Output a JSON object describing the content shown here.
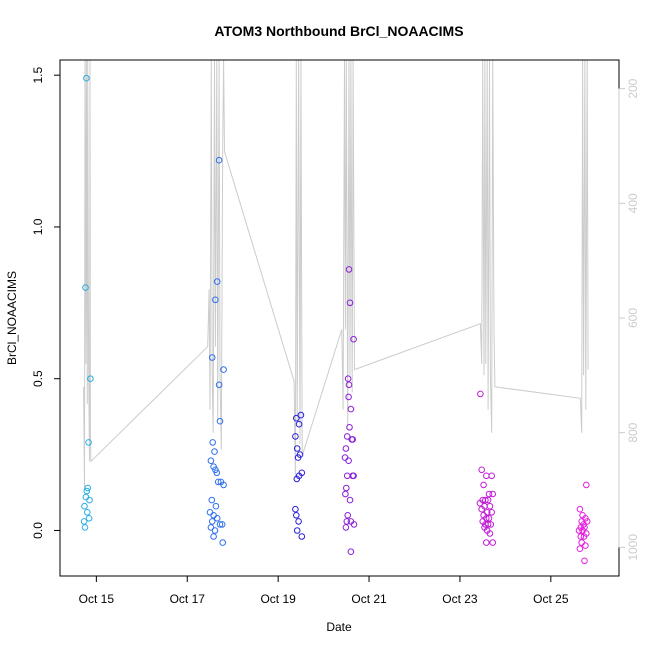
{
  "chart_data": {
    "type": "scatter",
    "title": "ATOM3 Northbound BrCl_NOAACIMS",
    "xlabel": "Date",
    "ylabel": "BrCl_NOAACIMS",
    "xlim": [
      14.2,
      26.5
    ],
    "ylim": [
      -0.15,
      1.55
    ],
    "y_ticks": [
      0.0,
      0.5,
      1.0,
      1.5
    ],
    "y_tick_labels": [
      "0.0",
      "0.5",
      "1.0",
      "1.5"
    ],
    "x_ticks": [
      15,
      17,
      19,
      21,
      23,
      25
    ],
    "x_tick_labels": [
      "Oct 15",
      "Oct 17",
      "Oct 19",
      "Oct 21",
      "Oct 23",
      "Oct 25"
    ],
    "right_axis": {
      "label": "",
      "range": [
        1050,
        150
      ],
      "ticks": [
        200,
        400,
        600,
        800,
        1000
      ],
      "tick_labels": [
        "200",
        "400",
        "600",
        "800",
        "1000"
      ],
      "color": "#cccccc"
    },
    "point_colors": [
      "#29aee3",
      "#2f6fee",
      "#2a1fdc",
      "#8b1ed6",
      "#c21cd8",
      "#e61ee0"
    ],
    "points": [
      {
        "x": 14.78,
        "y": 1.49,
        "g": 0
      },
      {
        "x": 14.76,
        "y": 0.8,
        "g": 0
      },
      {
        "x": 14.87,
        "y": 0.5,
        "g": 0
      },
      {
        "x": 14.83,
        "y": 0.29,
        "g": 0
      },
      {
        "x": 14.81,
        "y": 0.14,
        "g": 0
      },
      {
        "x": 14.79,
        "y": 0.13,
        "g": 0
      },
      {
        "x": 14.77,
        "y": 0.11,
        "g": 0
      },
      {
        "x": 14.85,
        "y": 0.1,
        "g": 0
      },
      {
        "x": 14.74,
        "y": 0.08,
        "g": 0
      },
      {
        "x": 14.8,
        "y": 0.06,
        "g": 0
      },
      {
        "x": 14.84,
        "y": 0.04,
        "g": 0
      },
      {
        "x": 14.73,
        "y": 0.03,
        "g": 0
      },
      {
        "x": 14.75,
        "y": 0.01,
        "g": 0
      },
      {
        "x": 17.7,
        "y": 1.22,
        "g": 1
      },
      {
        "x": 17.66,
        "y": 0.82,
        "g": 1
      },
      {
        "x": 17.62,
        "y": 0.76,
        "g": 1
      },
      {
        "x": 17.55,
        "y": 0.57,
        "g": 1
      },
      {
        "x": 17.8,
        "y": 0.53,
        "g": 1
      },
      {
        "x": 17.7,
        "y": 0.48,
        "g": 1
      },
      {
        "x": 17.72,
        "y": 0.36,
        "g": 1
      },
      {
        "x": 17.56,
        "y": 0.29,
        "g": 1
      },
      {
        "x": 17.6,
        "y": 0.26,
        "g": 1
      },
      {
        "x": 17.52,
        "y": 0.23,
        "g": 1
      },
      {
        "x": 17.58,
        "y": 0.21,
        "g": 1
      },
      {
        "x": 17.62,
        "y": 0.2,
        "g": 1
      },
      {
        "x": 17.65,
        "y": 0.19,
        "g": 1
      },
      {
        "x": 17.68,
        "y": 0.16,
        "g": 1
      },
      {
        "x": 17.74,
        "y": 0.16,
        "g": 1
      },
      {
        "x": 17.8,
        "y": 0.15,
        "g": 1
      },
      {
        "x": 17.54,
        "y": 0.1,
        "g": 1
      },
      {
        "x": 17.63,
        "y": 0.08,
        "g": 1
      },
      {
        "x": 17.5,
        "y": 0.06,
        "g": 1
      },
      {
        "x": 17.58,
        "y": 0.05,
        "g": 1
      },
      {
        "x": 17.66,
        "y": 0.04,
        "g": 1
      },
      {
        "x": 17.55,
        "y": 0.03,
        "g": 1
      },
      {
        "x": 17.72,
        "y": 0.02,
        "g": 1
      },
      {
        "x": 17.77,
        "y": 0.02,
        "g": 1
      },
      {
        "x": 17.52,
        "y": 0.01,
        "g": 1
      },
      {
        "x": 17.61,
        "y": 0.0,
        "g": 1
      },
      {
        "x": 17.58,
        "y": -0.02,
        "g": 1
      },
      {
        "x": 17.78,
        "y": -0.04,
        "g": 1
      },
      {
        "x": 19.5,
        "y": 0.38,
        "g": 2
      },
      {
        "x": 19.4,
        "y": 0.37,
        "g": 2
      },
      {
        "x": 19.46,
        "y": 0.35,
        "g": 2
      },
      {
        "x": 19.38,
        "y": 0.31,
        "g": 2
      },
      {
        "x": 19.42,
        "y": 0.27,
        "g": 2
      },
      {
        "x": 19.48,
        "y": 0.25,
        "g": 2
      },
      {
        "x": 19.44,
        "y": 0.24,
        "g": 2
      },
      {
        "x": 19.52,
        "y": 0.19,
        "g": 2
      },
      {
        "x": 19.46,
        "y": 0.18,
        "g": 2
      },
      {
        "x": 19.41,
        "y": 0.17,
        "g": 2
      },
      {
        "x": 19.38,
        "y": 0.07,
        "g": 2
      },
      {
        "x": 19.4,
        "y": 0.05,
        "g": 2
      },
      {
        "x": 19.45,
        "y": 0.03,
        "g": 2
      },
      {
        "x": 19.42,
        "y": 0.0,
        "g": 2
      },
      {
        "x": 19.52,
        "y": -0.02,
        "g": 2
      },
      {
        "x": 20.56,
        "y": 0.86,
        "g": 3
      },
      {
        "x": 20.58,
        "y": 0.75,
        "g": 3
      },
      {
        "x": 20.66,
        "y": 0.63,
        "g": 3
      },
      {
        "x": 20.54,
        "y": 0.5,
        "g": 3
      },
      {
        "x": 20.56,
        "y": 0.48,
        "g": 3
      },
      {
        "x": 20.55,
        "y": 0.44,
        "g": 3
      },
      {
        "x": 20.6,
        "y": 0.4,
        "g": 3
      },
      {
        "x": 20.57,
        "y": 0.34,
        "g": 3
      },
      {
        "x": 20.52,
        "y": 0.31,
        "g": 3
      },
      {
        "x": 20.62,
        "y": 0.3,
        "g": 3
      },
      {
        "x": 20.64,
        "y": 0.3,
        "g": 3
      },
      {
        "x": 20.49,
        "y": 0.27,
        "g": 3
      },
      {
        "x": 20.47,
        "y": 0.24,
        "g": 3
      },
      {
        "x": 20.55,
        "y": 0.23,
        "g": 3
      },
      {
        "x": 20.52,
        "y": 0.18,
        "g": 3
      },
      {
        "x": 20.64,
        "y": 0.18,
        "g": 3
      },
      {
        "x": 20.66,
        "y": 0.18,
        "g": 3
      },
      {
        "x": 20.5,
        "y": 0.14,
        "g": 3
      },
      {
        "x": 20.48,
        "y": 0.12,
        "g": 3
      },
      {
        "x": 20.58,
        "y": 0.1,
        "g": 3
      },
      {
        "x": 20.53,
        "y": 0.05,
        "g": 3
      },
      {
        "x": 20.51,
        "y": 0.03,
        "g": 3
      },
      {
        "x": 20.6,
        "y": 0.03,
        "g": 3
      },
      {
        "x": 20.67,
        "y": 0.02,
        "g": 3
      },
      {
        "x": 20.49,
        "y": 0.01,
        "g": 3
      },
      {
        "x": 20.6,
        "y": -0.07,
        "g": 3
      },
      {
        "x": 23.45,
        "y": 0.45,
        "g": 4
      },
      {
        "x": 23.48,
        "y": 0.2,
        "g": 4
      },
      {
        "x": 23.58,
        "y": 0.18,
        "g": 4
      },
      {
        "x": 23.7,
        "y": 0.18,
        "g": 4
      },
      {
        "x": 23.52,
        "y": 0.15,
        "g": 4
      },
      {
        "x": 23.64,
        "y": 0.12,
        "g": 4
      },
      {
        "x": 23.72,
        "y": 0.12,
        "g": 4
      },
      {
        "x": 23.5,
        "y": 0.1,
        "g": 4
      },
      {
        "x": 23.56,
        "y": 0.1,
        "g": 4
      },
      {
        "x": 23.62,
        "y": 0.1,
        "g": 4
      },
      {
        "x": 23.44,
        "y": 0.09,
        "g": 4
      },
      {
        "x": 23.54,
        "y": 0.08,
        "g": 4
      },
      {
        "x": 23.66,
        "y": 0.08,
        "g": 4
      },
      {
        "x": 23.48,
        "y": 0.07,
        "g": 4
      },
      {
        "x": 23.6,
        "y": 0.06,
        "g": 4
      },
      {
        "x": 23.7,
        "y": 0.06,
        "g": 4
      },
      {
        "x": 23.52,
        "y": 0.05,
        "g": 4
      },
      {
        "x": 23.58,
        "y": 0.04,
        "g": 4
      },
      {
        "x": 23.64,
        "y": 0.04,
        "g": 4
      },
      {
        "x": 23.5,
        "y": 0.03,
        "g": 4
      },
      {
        "x": 23.56,
        "y": 0.02,
        "g": 4
      },
      {
        "x": 23.62,
        "y": 0.02,
        "g": 4
      },
      {
        "x": 23.68,
        "y": 0.02,
        "g": 4
      },
      {
        "x": 23.54,
        "y": 0.01,
        "g": 4
      },
      {
        "x": 23.6,
        "y": 0.0,
        "g": 4
      },
      {
        "x": 23.66,
        "y": -0.01,
        "g": 4
      },
      {
        "x": 23.58,
        "y": -0.04,
        "g": 4
      },
      {
        "x": 23.72,
        "y": -0.04,
        "g": 4
      },
      {
        "x": 25.78,
        "y": 0.15,
        "g": 5
      },
      {
        "x": 25.64,
        "y": 0.07,
        "g": 5
      },
      {
        "x": 25.7,
        "y": 0.05,
        "g": 5
      },
      {
        "x": 25.76,
        "y": 0.04,
        "g": 5
      },
      {
        "x": 25.68,
        "y": 0.03,
        "g": 5
      },
      {
        "x": 25.8,
        "y": 0.03,
        "g": 5
      },
      {
        "x": 25.72,
        "y": 0.02,
        "g": 5
      },
      {
        "x": 25.66,
        "y": 0.01,
        "g": 5
      },
      {
        "x": 25.74,
        "y": 0.01,
        "g": 5
      },
      {
        "x": 25.62,
        "y": 0.0,
        "g": 5
      },
      {
        "x": 25.7,
        "y": 0.0,
        "g": 5
      },
      {
        "x": 25.78,
        "y": -0.01,
        "g": 5
      },
      {
        "x": 25.66,
        "y": -0.02,
        "g": 5
      },
      {
        "x": 25.73,
        "y": -0.02,
        "g": 5
      },
      {
        "x": 25.68,
        "y": -0.04,
        "g": 5
      },
      {
        "x": 25.76,
        "y": -0.05,
        "g": 5
      },
      {
        "x": 25.64,
        "y": -0.06,
        "g": 5
      },
      {
        "x": 25.74,
        "y": -0.1,
        "g": 5
      }
    ],
    "pressure_series": {
      "name": "pressure",
      "color": "#cccccc",
      "x": [
        14.72,
        14.74,
        14.75,
        14.77,
        14.78,
        14.8,
        14.81,
        14.83,
        14.85,
        14.86,
        14.87,
        14.88,
        17.45,
        17.48,
        17.5,
        17.53,
        17.55,
        17.57,
        17.6,
        17.62,
        17.65,
        17.67,
        17.7,
        17.72,
        17.75,
        17.78,
        17.8,
        17.82,
        19.35,
        19.38,
        19.4,
        19.42,
        19.45,
        19.48,
        19.5,
        19.53,
        20.4,
        20.43,
        20.46,
        20.48,
        20.5,
        20.53,
        20.56,
        20.58,
        20.6,
        20.63,
        20.65,
        20.68,
        23.45,
        23.48,
        23.5,
        23.53,
        23.55,
        23.57,
        23.6,
        23.62,
        23.65,
        23.67,
        23.7,
        23.72,
        23.75,
        23.77,
        25.65,
        25.68,
        25.7,
        25.72,
        25.75,
        25.77,
        25.8,
        25.82
      ],
      "y": [
        720,
        900,
        150,
        680,
        150,
        750,
        150,
        680,
        850,
        150,
        800,
        850,
        650,
        550,
        760,
        150,
        700,
        800,
        150,
        650,
        150,
        780,
        150,
        700,
        830,
        300,
        150,
        310,
        710,
        880,
        150,
        780,
        150,
        820,
        150,
        840,
        620,
        760,
        150,
        620,
        150,
        790,
        150,
        700,
        150,
        730,
        150,
        690,
        610,
        680,
        150,
        700,
        150,
        680,
        150,
        760,
        150,
        700,
        800,
        150,
        620,
        720,
        740,
        800,
        150,
        700,
        150,
        760,
        150,
        690
      ]
    }
  }
}
